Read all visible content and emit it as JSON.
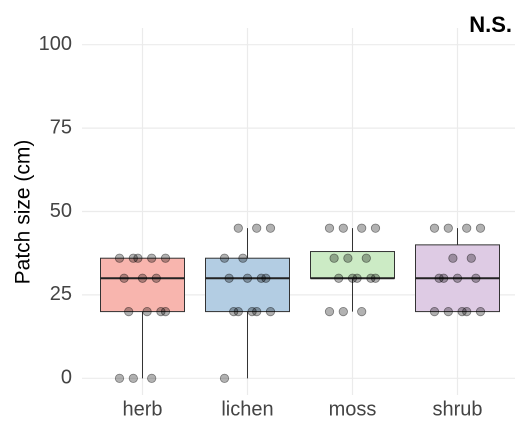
{
  "chart_data": {
    "type": "box",
    "annotation": "N.S.",
    "y_label": "Patch size (cm)",
    "categories": [
      "herb",
      "lichen",
      "moss",
      "shrub"
    ],
    "colors": [
      "#f8b5ae",
      "#b3cde3",
      "#ccebc5",
      "#decbe4"
    ],
    "stats": {
      "min": [
        0,
        0,
        20,
        20
      ],
      "q1": [
        20,
        20,
        30,
        20
      ],
      "median": [
        30,
        30,
        30,
        30
      ],
      "q3": [
        36,
        36,
        38,
        40
      ],
      "max": [
        36,
        45,
        45,
        45
      ]
    },
    "points": [
      [
        0,
        0,
        0,
        20,
        20,
        20,
        20,
        30,
        30,
        30,
        36,
        36,
        36,
        36,
        36
      ],
      [
        0,
        20,
        20,
        20,
        20,
        20,
        30,
        30,
        30,
        30,
        36,
        36,
        45,
        45,
        45
      ],
      [
        20,
        20,
        20,
        30,
        30,
        30,
        30,
        30,
        36,
        36,
        36,
        45,
        45,
        45,
        45
      ],
      [
        20,
        20,
        20,
        20,
        20,
        30,
        30,
        30,
        30,
        36,
        36,
        45,
        45,
        45,
        45
      ]
    ],
    "ylim": [
      -5,
      105
    ],
    "yticks": [
      0,
      25,
      50,
      75,
      100
    ],
    "grid": true
  }
}
